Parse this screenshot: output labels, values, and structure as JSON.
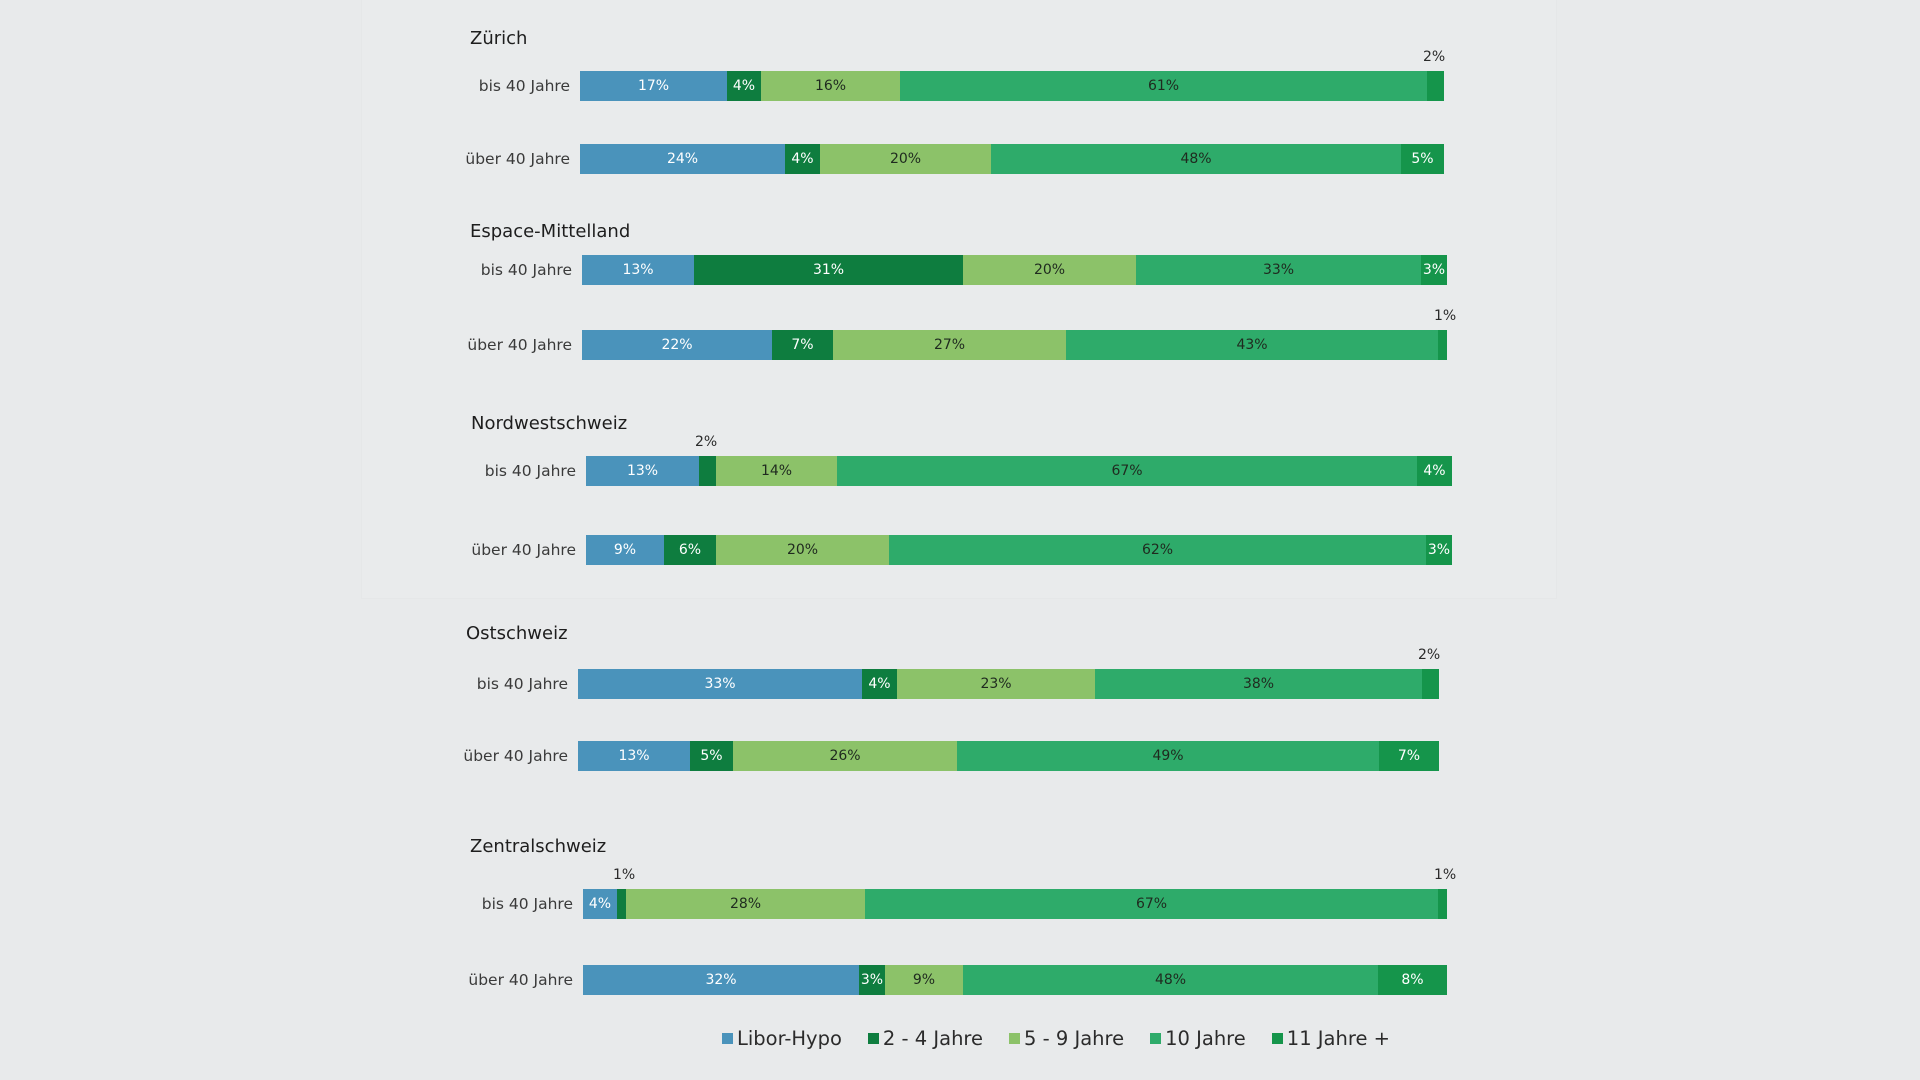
{
  "chart_data": {
    "type": "bar",
    "orientation": "horizontal",
    "stacked": true,
    "unit": "%",
    "series_names": [
      "Libor-Hypo",
      "2 - 4 Jahre",
      "5 - 9 Jahre",
      "10 Jahre",
      "11 Jahre +"
    ],
    "colors": {
      "Libor-Hypo": "#4a93bb",
      "2 - 4 Jahre": "#0e7d3f",
      "5 - 9 Jahre": "#8cc269",
      "10 Jahre": "#2eab6a",
      "11 Jahre +": "#15954b"
    },
    "regions": [
      {
        "name": "Zürich",
        "rows": [
          {
            "label": "bis 40 Jahre",
            "values": [
              17,
              4,
              16,
              61,
              2
            ],
            "value_labels": [
              "17%",
              "4%",
              "16%",
              "61%",
              "2%"
            ]
          },
          {
            "label": "über 40 Jahre",
            "values": [
              24,
              4,
              20,
              48,
              5
            ],
            "value_labels": [
              "24%",
              "4%",
              "20%",
              "48%",
              "5%"
            ]
          }
        ]
      },
      {
        "name": "Espace-Mittelland",
        "rows": [
          {
            "label": "bis 40 Jahre",
            "values": [
              13,
              31,
              20,
              33,
              3
            ],
            "value_labels": [
              "13%",
              "31%",
              "20%",
              "33%",
              "3%"
            ]
          },
          {
            "label": "über 40 Jahre",
            "values": [
              22,
              7,
              27,
              43,
              1
            ],
            "value_labels": [
              "22%",
              "7%",
              "27%",
              "43%",
              "1%"
            ]
          }
        ]
      },
      {
        "name": "Nordwestschweiz",
        "rows": [
          {
            "label": "bis 40 Jahre",
            "values": [
              13,
              2,
              14,
              67,
              4
            ],
            "value_labels": [
              "13%",
              "2%",
              "14%",
              "67%",
              "4%"
            ]
          },
          {
            "label": "über 40 Jahre",
            "values": [
              9,
              6,
              20,
              62,
              3
            ],
            "value_labels": [
              "9%",
              "6%",
              "20%",
              "62%",
              "3%"
            ]
          }
        ]
      },
      {
        "name": "Ostschweiz",
        "rows": [
          {
            "label": "bis 40 Jahre",
            "values": [
              33,
              4,
              23,
              38,
              2
            ],
            "value_labels": [
              "33%",
              "4%",
              "23%",
              "38%",
              "2%"
            ]
          },
          {
            "label": "über 40 Jahre",
            "values": [
              13,
              5,
              26,
              49,
              7
            ],
            "value_labels": [
              "13%",
              "5%",
              "26%",
              "49%",
              "7%"
            ]
          }
        ]
      },
      {
        "name": "Zentralschweiz",
        "rows": [
          {
            "label": "bis 40 Jahre",
            "values": [
              4,
              1,
              28,
              67,
              1
            ],
            "value_labels": [
              "4%",
              "1%",
              "28%",
              "67%",
              "1%"
            ]
          },
          {
            "label": "über 40 Jahre",
            "values": [
              32,
              3,
              9,
              48,
              8
            ],
            "value_labels": [
              "32%",
              "3%",
              "9%",
              "48%",
              "8%"
            ]
          }
        ]
      }
    ],
    "legend": [
      "Libor-Hypo",
      "2 - 4 Jahre",
      "5 - 9 Jahre",
      "10 Jahre",
      "11 Jahre +"
    ],
    "legend_position": "bottom-center"
  }
}
